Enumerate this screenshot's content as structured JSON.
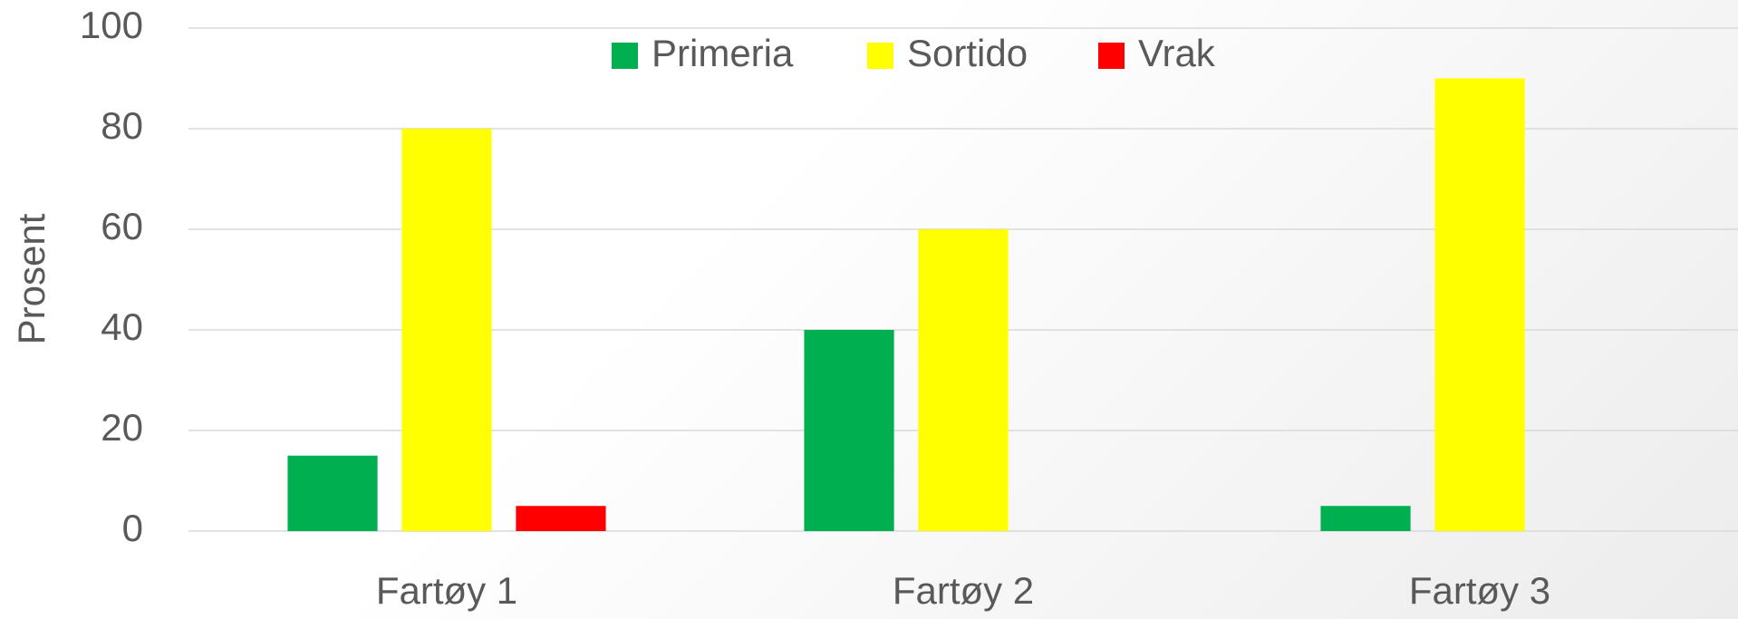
{
  "chart_data": {
    "type": "bar",
    "y_label": "Prosent",
    "categories": [
      "Fartøy 1",
      "Fartøy 2",
      "Fartøy 3"
    ],
    "series": [
      {
        "name": "Primeria",
        "color": "#00b050",
        "values": [
          15,
          40,
          5
        ]
      },
      {
        "name": "Sortido",
        "color": "#ffff00",
        "values": [
          80,
          60,
          90
        ]
      },
      {
        "name": "Vrak",
        "color": "#ff0000",
        "values": [
          5,
          0,
          0
        ]
      }
    ],
    "ylim": [
      0,
      100
    ],
    "yticks": [
      0,
      20,
      40,
      60,
      80,
      100
    ],
    "grid": true,
    "legend": "top"
  }
}
